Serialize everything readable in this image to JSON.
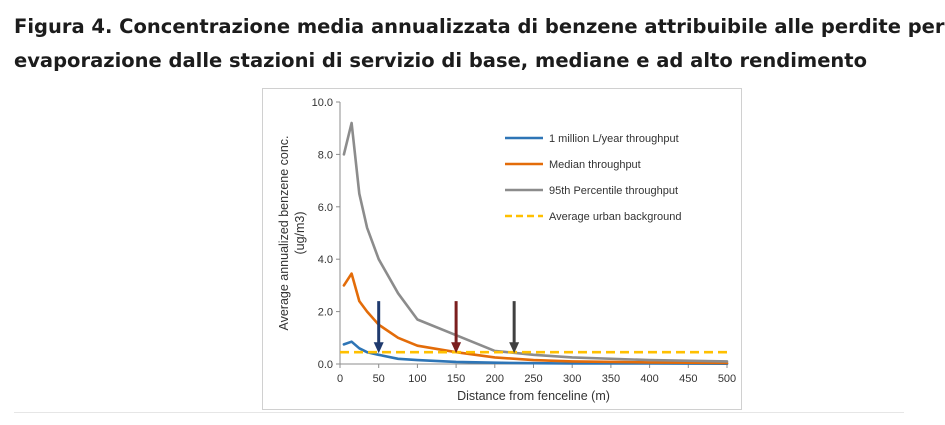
{
  "caption": {
    "line1": "Figura 4. Concentrazione media annualizzata di benzene attribuibile alle perdite per",
    "line2": "evaporazione dalle stazioni di servizio di base, mediane e ad alto rendimento"
  },
  "chart_data": {
    "type": "line",
    "xlabel": "Distance from fenceline (m)",
    "ylabel": "Average annualized benzene conc. (ug/m3)",
    "xlim": [
      0,
      500
    ],
    "ylim": [
      0,
      10
    ],
    "xticks": [
      "0",
      "50",
      "100",
      "150",
      "200",
      "250",
      "300",
      "350",
      "400",
      "450",
      "500"
    ],
    "yticks": [
      "0.0",
      "2.0",
      "4.0",
      "6.0",
      "8.0",
      "10.0"
    ],
    "grid": false,
    "legend_position": "top-right",
    "series": [
      {
        "name": "1 million L/year throughput",
        "color": "#2e75b6",
        "style": "solid",
        "x": [
          5,
          15,
          25,
          35,
          50,
          75,
          100,
          150,
          200,
          250,
          300,
          400,
          500
        ],
        "y": [
          0.75,
          0.85,
          0.6,
          0.45,
          0.35,
          0.2,
          0.15,
          0.08,
          0.05,
          0.03,
          0.02,
          0.02,
          0.01
        ]
      },
      {
        "name": "Median throughput",
        "color": "#e36c09",
        "style": "solid",
        "x": [
          5,
          15,
          25,
          35,
          50,
          75,
          100,
          150,
          200,
          250,
          300,
          400,
          500
        ],
        "y": [
          3.0,
          3.45,
          2.4,
          2.0,
          1.5,
          1.0,
          0.7,
          0.45,
          0.25,
          0.15,
          0.1,
          0.06,
          0.04
        ]
      },
      {
        "name": "95th Percentile throughput",
        "color": "#8c8c8c",
        "style": "solid",
        "x": [
          5,
          15,
          25,
          35,
          50,
          75,
          100,
          150,
          200,
          250,
          300,
          400,
          500
        ],
        "y": [
          8.0,
          9.2,
          6.5,
          5.2,
          4.0,
          2.7,
          1.7,
          1.1,
          0.5,
          0.35,
          0.25,
          0.15,
          0.1
        ]
      },
      {
        "name": "Average urban background",
        "color": "#ffc000",
        "style": "dashed",
        "x": [
          0,
          500
        ],
        "y": [
          0.45,
          0.45
        ]
      }
    ],
    "markers": [
      {
        "x": 50,
        "color": "#1f3a6e"
      },
      {
        "x": 150,
        "color": "#7b1f1f"
      },
      {
        "x": 225,
        "color": "#404040"
      }
    ]
  }
}
